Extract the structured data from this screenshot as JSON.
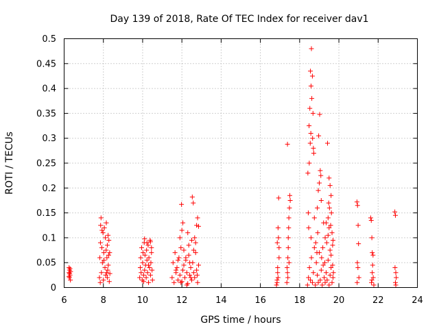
{
  "chart_data": {
    "type": "scatter",
    "title": "Day 139 of 2018, Rate Of TEC Index for receiver dav1",
    "xlabel": "GPS time / hours",
    "ylabel": "ROTI / TECUs",
    "xlim": [
      6,
      24
    ],
    "ylim": [
      0,
      0.5
    ],
    "xticks": [
      6,
      8,
      10,
      12,
      14,
      16,
      18,
      20,
      22,
      24
    ],
    "yticks": [
      0,
      0.05,
      0.1,
      0.15,
      0.2,
      0.25,
      0.3,
      0.35,
      0.4,
      0.45,
      0.5
    ],
    "xtick_labels": [
      "6",
      "8",
      "10",
      "12",
      "14",
      "16",
      "18",
      "20",
      "22",
      "24"
    ],
    "ytick_labels": [
      "0",
      "0.05",
      "0.1",
      "0.15",
      "0.2",
      "0.25",
      "0.3",
      "0.35",
      "0.4",
      "0.45",
      "0.5"
    ],
    "grid": true,
    "marker": "+",
    "color": "#ff0000",
    "series": [
      {
        "name": "dav1",
        "x": [
          6.25,
          6.25,
          6.27,
          6.28,
          6.3,
          6.32,
          6.28,
          6.25,
          6.3,
          6.33,
          7.8,
          7.82,
          7.85,
          7.88,
          7.9,
          7.92,
          7.95,
          7.98,
          8.0,
          8.02,
          8.05,
          8.08,
          8.1,
          8.12,
          8.15,
          8.18,
          8.2,
          8.22,
          8.25,
          8.28,
          8.3,
          8.32,
          7.86,
          7.93,
          8.03,
          8.14,
          8.24,
          8.33,
          7.84,
          8.2,
          8.27,
          8.16,
          9.85,
          9.88,
          9.9,
          9.92,
          9.95,
          9.98,
          10.0,
          10.02,
          10.05,
          10.08,
          10.1,
          10.12,
          10.15,
          10.18,
          10.2,
          10.22,
          10.25,
          10.28,
          10.3,
          10.32,
          10.35,
          10.38,
          10.4,
          10.42,
          10.45,
          10.48,
          10.5,
          10.1,
          10.22,
          10.4,
          10.45,
          10.05,
          10.3,
          11.5,
          11.55,
          11.6,
          11.65,
          11.7,
          11.75,
          11.8,
          11.85,
          11.9,
          11.95,
          12.0,
          12.05,
          12.1,
          12.15,
          12.2,
          12.25,
          12.3,
          12.35,
          12.4,
          12.45,
          12.5,
          12.55,
          12.6,
          12.65,
          12.7,
          12.75,
          12.8,
          12.85,
          11.98,
          12.0,
          12.53,
          12.58,
          12.75,
          12.85,
          12.7,
          12.8,
          11.9,
          12.05,
          12.3,
          12.6,
          12.4,
          11.7,
          12.2,
          12.5,
          12.78,
          11.8,
          12.1,
          12.65,
          11.95,
          12.45,
          12.35,
          12.25,
          16.82,
          16.85,
          16.88,
          16.9,
          16.93,
          16.95,
          16.88,
          16.92,
          16.85,
          16.95,
          16.86,
          16.9,
          17.35,
          17.38,
          17.4,
          17.42,
          17.45,
          17.48,
          17.5,
          17.38,
          17.42,
          17.46,
          17.4,
          17.44,
          17.52,
          17.36,
          18.4,
          18.45,
          18.5,
          18.55,
          18.6,
          18.65,
          18.7,
          18.75,
          18.8,
          18.85,
          18.9,
          18.95,
          19.0,
          19.05,
          19.1,
          19.15,
          19.2,
          19.25,
          19.3,
          19.35,
          19.4,
          19.45,
          19.5,
          19.55,
          19.6,
          19.65,
          19.7,
          18.6,
          18.55,
          18.65,
          18.58,
          18.62,
          18.52,
          18.68,
          18.48,
          18.57,
          18.66,
          18.54,
          18.72,
          18.49,
          19.02,
          18.97,
          19.05,
          19.08,
          19.0,
          18.95,
          19.5,
          19.55,
          19.6,
          19.48,
          19.52,
          19.62,
          19.45,
          19.58,
          19.65,
          19.7,
          19.42,
          19.35,
          18.42,
          18.44,
          18.46,
          18.58,
          18.75,
          18.82,
          18.88,
          18.92,
          19.12,
          19.18,
          19.22,
          19.28,
          19.38,
          19.45,
          19.55,
          19.6,
          19.68,
          19.72,
          18.7,
          18.9,
          19.1,
          19.3,
          19.5,
          19.68,
          20.92,
          20.95,
          20.98,
          21.0,
          20.94,
          20.97,
          20.93,
          21.02,
          21.62,
          21.65,
          21.68,
          21.7,
          21.72,
          21.75,
          21.78,
          21.66,
          21.7,
          21.74,
          21.68,
          22.85,
          22.88,
          22.9,
          22.92,
          22.88,
          22.9,
          22.86
        ],
        "y": [
          0.04,
          0.03,
          0.02,
          0.035,
          0.025,
          0.015,
          0.028,
          0.022,
          0.038,
          0.032,
          0.02,
          0.06,
          0.09,
          0.14,
          0.03,
          0.08,
          0.05,
          0.11,
          0.015,
          0.07,
          0.12,
          0.04,
          0.1,
          0.025,
          0.13,
          0.06,
          0.085,
          0.035,
          0.045,
          0.095,
          0.012,
          0.07,
          0.125,
          0.115,
          0.055,
          0.075,
          0.105,
          0.028,
          0.01,
          0.02,
          0.065,
          0.03,
          0.02,
          0.04,
          0.06,
          0.03,
          0.08,
          0.015,
          0.05,
          0.07,
          0.025,
          0.09,
          0.035,
          0.065,
          0.045,
          0.02,
          0.075,
          0.055,
          0.03,
          0.085,
          0.01,
          0.06,
          0.04,
          0.095,
          0.025,
          0.05,
          0.07,
          0.035,
          0.015,
          0.098,
          0.09,
          0.092,
          0.08,
          0.012,
          0.045,
          0.02,
          0.05,
          0.01,
          0.07,
          0.03,
          0.04,
          0.015,
          0.06,
          0.025,
          0.08,
          0.012,
          0.035,
          0.045,
          0.02,
          0.055,
          0.03,
          0.008,
          0.065,
          0.025,
          0.04,
          0.015,
          0.05,
          0.03,
          0.02,
          0.07,
          0.035,
          0.01,
          0.045,
          0.167,
          0.115,
          0.182,
          0.17,
          0.125,
          0.123,
          0.09,
          0.14,
          0.1,
          0.13,
          0.11,
          0.075,
          0.05,
          0.035,
          0.06,
          0.095,
          0.025,
          0.055,
          0.075,
          0.1,
          0.01,
          0.02,
          0.085,
          0.005,
          0.005,
          0.015,
          0.04,
          0.12,
          0.18,
          0.08,
          0.03,
          0.1,
          0.01,
          0.06,
          0.09,
          0.02,
          0.01,
          0.03,
          0.06,
          0.1,
          0.14,
          0.16,
          0.185,
          0.288,
          0.08,
          0.05,
          0.02,
          0.12,
          0.175,
          0.04,
          0.005,
          0.02,
          0.04,
          0.015,
          0.06,
          0.01,
          0.03,
          0.08,
          0.005,
          0.05,
          0.025,
          0.01,
          0.07,
          0.015,
          0.035,
          0.005,
          0.045,
          0.02,
          0.01,
          0.03,
          0.015,
          0.055,
          0.005,
          0.025,
          0.04,
          0.01,
          0.02,
          0.48,
          0.435,
          0.425,
          0.405,
          0.38,
          0.36,
          0.35,
          0.325,
          0.31,
          0.3,
          0.29,
          0.27,
          0.25,
          0.348,
          0.305,
          0.235,
          0.225,
          0.21,
          0.195,
          0.22,
          0.205,
          0.185,
          0.17,
          0.16,
          0.15,
          0.14,
          0.125,
          0.11,
          0.095,
          0.29,
          0.13,
          0.23,
          0.15,
          0.12,
          0.1,
          0.14,
          0.09,
          0.07,
          0.11,
          0.06,
          0.08,
          0.13,
          0.05,
          0.09,
          0.105,
          0.075,
          0.065,
          0.045,
          0.03,
          0.28,
          0.16,
          0.175,
          0.1,
          0.12,
          0.085,
          0.172,
          0.165,
          0.125,
          0.088,
          0.05,
          0.04,
          0.01,
          0.02,
          0.14,
          0.135,
          0.1,
          0.07,
          0.045,
          0.02,
          0.005,
          0.01,
          0.03,
          0.065,
          0.015,
          0.152,
          0.145,
          0.03,
          0.02,
          0.01,
          0.005,
          0.04
        ]
      }
    ]
  }
}
